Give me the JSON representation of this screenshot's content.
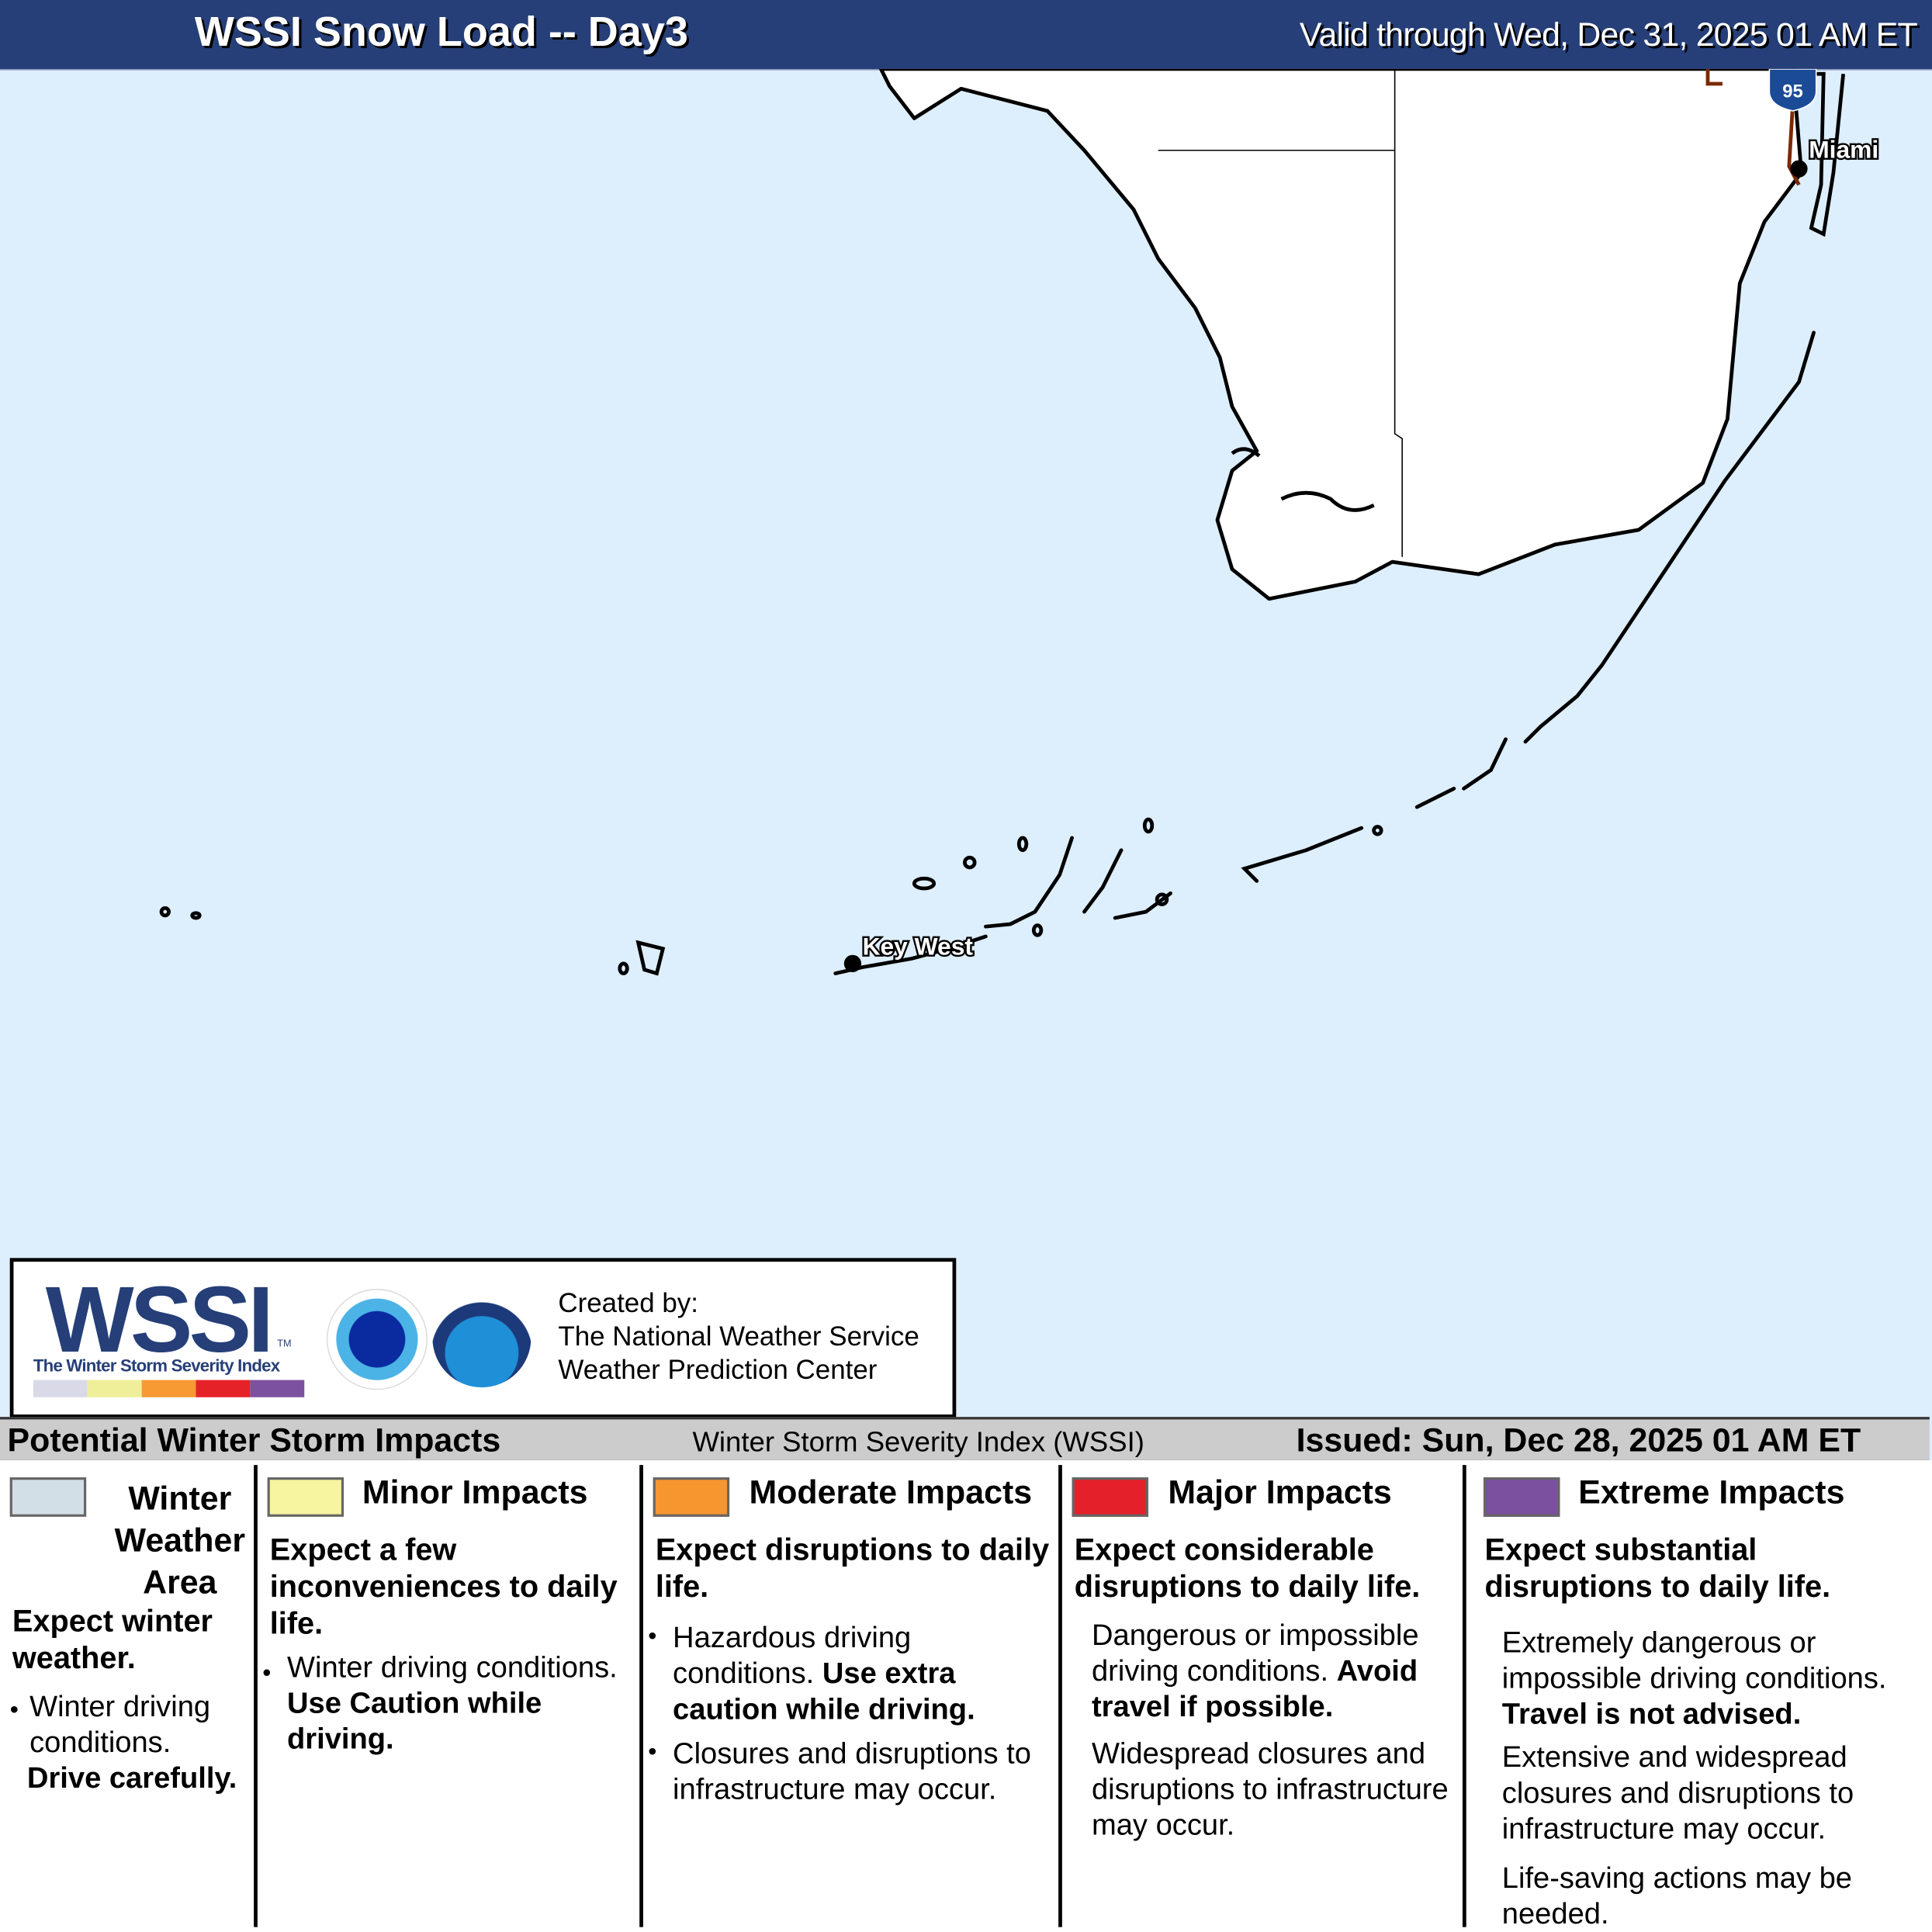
{
  "header": {
    "title": "WSSI Snow Load -- Day3",
    "valid": "Valid through Wed, Dec 31, 2025 01 AM ET"
  },
  "map": {
    "cities": [
      {
        "name": "Miami"
      },
      {
        "name": "Key West"
      }
    ],
    "highway_shield": "95",
    "colors": {
      "water": "#ddeefc",
      "land": "#ffffff",
      "coast": "#000000",
      "highway": "#7a2a00"
    }
  },
  "logo": {
    "wordmark": "WSSI",
    "tm": "TM",
    "tagline": "The Winter Storm Severity Index",
    "scale_colors": [
      "#d9d9e8",
      "#efef9a",
      "#f79a34",
      "#e62229",
      "#7c52a0"
    ],
    "nws_seal": "NATIONAL WEATHER SERVICE",
    "noaa_seal": "NOAA",
    "created_by": "Created by:",
    "org1": "The National Weather Service",
    "org2": "Weather Prediction Center"
  },
  "legend_bar": {
    "left": "Potential Winter Storm Impacts",
    "center": "Winter Storm Severity Index (WSSI)",
    "issued": "Issued: Sun, Dec 28, 2025 01 AM ET"
  },
  "legend": [
    {
      "title": "Winter Weather Area",
      "color": "#d3dfe6",
      "subtitle": "Expect winter weather.",
      "b1": "Winter driving conditions.",
      "b1_bold": "Drive carefully."
    },
    {
      "title": "Minor Impacts",
      "color": "#f7f59f",
      "subtitle": "Expect a few inconveniences to daily life.",
      "b1": "Winter driving conditions.",
      "b1_bold": "Use Caution while driving."
    },
    {
      "title": "Moderate Impacts",
      "color": "#f7952f",
      "subtitle": "Expect disruptions to daily life.",
      "b1": "Hazardous driving conditions.",
      "b1_bold": "Use extra caution while driving.",
      "b2": "Closures and disruptions to infrastructure may occur."
    },
    {
      "title": "Major Impacts",
      "color": "#e4202a",
      "subtitle": "Expect considerable disruptions to daily life.",
      "b1": "Dangerous or impossible driving conditions.",
      "b1_bold": "Avoid travel if possible.",
      "b2": "Widespread closures and disruptions to infrastructure may occur."
    },
    {
      "title": "Extreme Impacts",
      "color": "#7b509f",
      "subtitle": "Expect substantial disruptions to daily life.",
      "b1": "Extremely dangerous or impossible driving conditions.",
      "b1_bold": "Travel is not advised.",
      "b2": "Extensive and widespread closures and disruptions to infrastructure may occur.",
      "b3": "Life-saving actions may be needed."
    }
  ]
}
